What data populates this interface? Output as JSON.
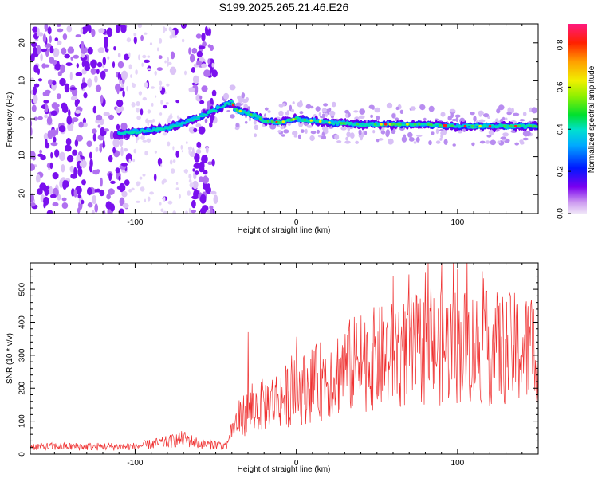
{
  "title": "S199.2025.265.21.46.E26",
  "chart_data": [
    {
      "type": "heatmap",
      "name": "spectrogram",
      "xlabel": "Height of straight line (km)",
      "ylabel": "Frequency (Hz)",
      "xlim": [
        -165,
        150
      ],
      "ylim": [
        -25,
        25
      ],
      "x_ticks": [
        -100,
        0,
        100
      ],
      "x_tick_labels": [
        "-100",
        "0",
        "100"
      ],
      "y_ticks": [
        -20,
        -10,
        0,
        10,
        20
      ],
      "y_tick_labels": [
        "-20",
        "-10",
        "0",
        "10",
        "20"
      ],
      "ridge": {
        "x": [
          -110,
          -100,
          -90,
          -80,
          -70,
          -60,
          -52,
          -45,
          -40,
          -38,
          -35,
          -30,
          -20,
          -10,
          0,
          20,
          40,
          60,
          80,
          100,
          120,
          140,
          150
        ],
        "y": [
          -4,
          -3.5,
          -3,
          -2.5,
          -1,
          0.5,
          2,
          3.5,
          4.5,
          2.5,
          2,
          1.5,
          -0.5,
          -1,
          0,
          -1,
          -1.5,
          -1.5,
          -1.5,
          -2,
          -2,
          -2,
          -2
        ]
      },
      "colorbar": {
        "label": "Normalized spectral amplitude",
        "range": [
          0,
          0.9
        ],
        "ticks": [
          0.0,
          0.2,
          0.4,
          0.6,
          0.8
        ],
        "tick_labels": [
          "0.0",
          "0.2",
          "0.4",
          "0.6",
          "0.8"
        ]
      }
    },
    {
      "type": "line",
      "name": "snr",
      "xlabel": "Height of straight line (km)",
      "ylabel": "SNR (10 * v/v)",
      "xlim": [
        -165,
        150
      ],
      "ylim": [
        0,
        580
      ],
      "x_ticks": [
        -100,
        0,
        100
      ],
      "x_tick_labels": [
        "-100",
        "0",
        "100"
      ],
      "y_ticks": [
        0,
        100,
        200,
        300,
        400,
        500
      ],
      "y_tick_labels": [
        "0",
        "100",
        "200",
        "300",
        "400",
        "500"
      ],
      "color": "#ef3030",
      "series": [
        {
          "name": "baseline",
          "x": [
            -165,
            -100,
            -80,
            -70,
            -60,
            -42
          ],
          "values": [
            22,
            22,
            35,
            45,
            30,
            25
          ]
        },
        {
          "name": "mean",
          "x": [
            -42,
            -35,
            -30,
            -20,
            -10,
            0,
            10,
            20,
            30,
            40,
            60,
            80,
            100,
            120,
            150
          ],
          "values": [
            55,
            110,
            130,
            150,
            170,
            190,
            210,
            235,
            260,
            280,
            300,
            320,
            330,
            320,
            315
          ]
        },
        {
          "name": "spikes",
          "x": [
            -30,
            40,
            60,
            70,
            80,
            90,
            100
          ],
          "values": [
            370,
            420,
            540,
            545,
            550,
            580,
            560
          ]
        }
      ]
    }
  ]
}
